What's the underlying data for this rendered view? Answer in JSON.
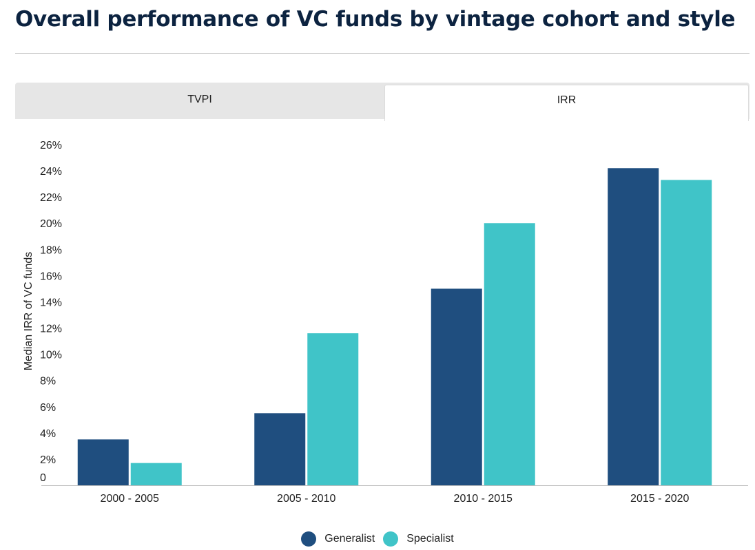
{
  "header": {
    "title": "Overall performance of VC funds by vintage cohort and style"
  },
  "tabs": [
    {
      "label": "TVPI",
      "active": false
    },
    {
      "label": "IRR",
      "active": true
    }
  ],
  "colors": {
    "generalist": "#1f4e7f",
    "specialist": "#40c4c8"
  },
  "chart_data": {
    "type": "bar",
    "title": "",
    "xlabel": "",
    "ylabel": "Median IRR of VC funds",
    "categories": [
      "2000 - 2005",
      "2005 - 2010",
      "2010 - 2015",
      "2015 - 2020"
    ],
    "series": [
      {
        "name": "Generalist",
        "values": [
          3.5,
          5.5,
          15.0,
          24.2
        ]
      },
      {
        "name": "Specialist",
        "values": [
          1.7,
          11.6,
          20.0,
          23.3
        ]
      }
    ],
    "ylim": [
      0,
      26
    ],
    "yticks": [
      "0",
      "2%",
      "4%",
      "6%",
      "8%",
      "10%",
      "12%",
      "14%",
      "16%",
      "18%",
      "20%",
      "22%",
      "24%",
      "26%"
    ],
    "ytick_values": [
      0,
      2,
      4,
      6,
      8,
      10,
      12,
      14,
      16,
      18,
      20,
      22,
      24,
      26
    ],
    "grid": false,
    "legend": "bottom-center"
  }
}
